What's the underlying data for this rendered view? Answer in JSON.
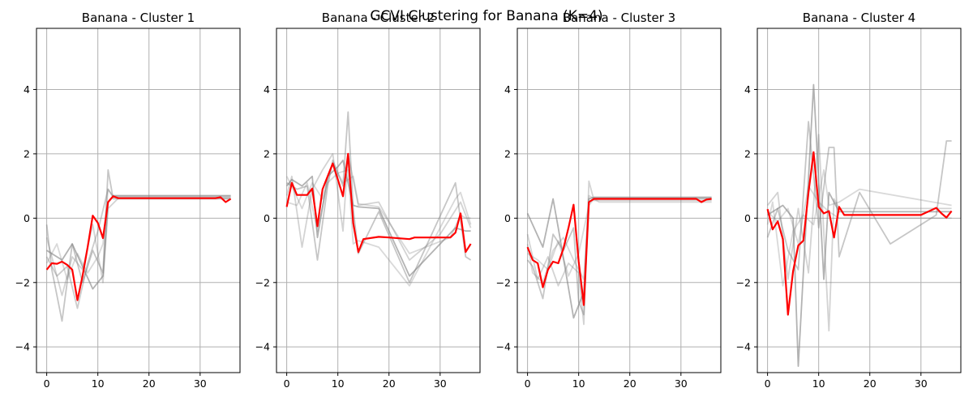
{
  "figure_title": "GCVI Clustering for Banana (K=4)",
  "colors": {
    "member": "#808080",
    "centroid": "#ff0000",
    "grid": "#b0b0b0"
  },
  "chart_data": [
    {
      "type": "line",
      "title": "Banana - Cluster 1",
      "xlim": [
        -2,
        37.8
      ],
      "ylim": [
        -4.8,
        5.9
      ],
      "xticks": [
        0,
        10,
        20,
        30
      ],
      "yticks": [
        -4,
        -2,
        0,
        2,
        4
      ],
      "grid": true,
      "members": [
        {
          "x": [
            0,
            3,
            5,
            9,
            11,
            12,
            13,
            36
          ],
          "y": [
            -1.0,
            -1.3,
            -0.8,
            -2.2,
            -1.8,
            0.5,
            0.7,
            0.7
          ],
          "opacity": 0.6
        },
        {
          "x": [
            0,
            1,
            3,
            5,
            7,
            9,
            11,
            12,
            13,
            36
          ],
          "y": [
            -0.2,
            -1.6,
            -3.2,
            -0.8,
            -2.0,
            -1.0,
            -1.7,
            1.5,
            0.6,
            0.6
          ],
          "opacity": 0.45
        },
        {
          "x": [
            0,
            2,
            4,
            6,
            8,
            10,
            12,
            13,
            36
          ],
          "y": [
            -1.2,
            -1.8,
            -1.5,
            -2.8,
            -1.4,
            -0.4,
            0.9,
            0.65,
            0.65
          ],
          "opacity": 0.4
        },
        {
          "x": [
            0,
            3,
            5,
            7,
            9,
            11,
            12,
            14,
            36
          ],
          "y": [
            -0.6,
            -2.4,
            -1.2,
            -1.6,
            -0.2,
            -2.0,
            0.3,
            0.62,
            0.62
          ],
          "opacity": 0.35
        },
        {
          "x": [
            0,
            2,
            4,
            6,
            8,
            10,
            11,
            12,
            13,
            36
          ],
          "y": [
            -1.4,
            -0.8,
            -1.9,
            -1.1,
            -1.7,
            -1.2,
            -0.8,
            0.9,
            0.68,
            0.68
          ],
          "opacity": 0.3
        }
      ],
      "centroid": {
        "x": [
          0,
          1,
          2,
          3,
          4,
          5,
          6,
          7,
          8,
          9,
          10,
          11,
          12,
          13,
          14,
          15,
          20,
          25,
          30,
          33,
          34,
          35,
          36
        ],
        "y": [
          -1.6,
          -1.4,
          -1.42,
          -1.35,
          -1.45,
          -1.6,
          -2.55,
          -1.8,
          -0.9,
          0.08,
          -0.15,
          -0.62,
          0.5,
          0.68,
          0.62,
          0.62,
          0.62,
          0.62,
          0.62,
          0.62,
          0.65,
          0.5,
          0.6
        ]
      }
    },
    {
      "type": "line",
      "title": "Banana - Cluster 2",
      "xlim": [
        -2,
        37.8
      ],
      "ylim": [
        -4.8,
        5.9
      ],
      "xticks": [
        0,
        10,
        20,
        30
      ],
      "yticks": [
        -4,
        -2,
        0,
        2,
        4
      ],
      "grid": true,
      "members": [
        {
          "x": [
            0,
            1,
            3,
            5,
            6,
            8,
            10,
            11,
            13,
            14,
            18,
            24,
            33,
            35,
            36
          ],
          "y": [
            1.0,
            1.2,
            1.0,
            1.3,
            -0.6,
            1.3,
            1.6,
            1.8,
            0.4,
            0.35,
            0.3,
            -1.8,
            -0.3,
            -0.4,
            -0.4
          ],
          "opacity": 0.6
        },
        {
          "x": [
            0,
            2,
            4,
            6,
            8,
            9,
            11,
            12,
            13,
            14,
            18,
            24,
            33,
            35,
            36
          ],
          "y": [
            1.1,
            0.9,
            1.0,
            -1.3,
            1.0,
            1.8,
            1.0,
            3.3,
            0.3,
            -1.1,
            0.2,
            -2.0,
            1.1,
            -1.2,
            -1.3
          ],
          "opacity": 0.45
        },
        {
          "x": [
            0,
            1,
            3,
            5,
            7,
            9,
            11,
            12,
            14,
            18,
            24,
            30,
            34,
            36
          ],
          "y": [
            0.7,
            1.3,
            -0.9,
            0.9,
            1.5,
            2.0,
            -0.4,
            2.0,
            0.4,
            0.5,
            -1.3,
            -0.5,
            0.5,
            -0.3
          ],
          "opacity": 0.35
        },
        {
          "x": [
            0,
            2,
            4,
            6,
            8,
            10,
            12,
            13,
            14,
            18,
            24,
            33,
            34,
            36
          ],
          "y": [
            0.5,
            0.4,
            1.1,
            -0.4,
            1.1,
            1.4,
            1.5,
            -0.8,
            -0.7,
            -0.9,
            -2.1,
            0.6,
            0.8,
            -0.2
          ],
          "opacity": 0.3
        },
        {
          "x": [
            0,
            1,
            3,
            5,
            7,
            9,
            11,
            13,
            14,
            18,
            24,
            32,
            34,
            35,
            36
          ],
          "y": [
            1.3,
            1.0,
            0.3,
            1.1,
            0.6,
            1.7,
            1.1,
            1.3,
            0.45,
            0.35,
            -1.1,
            -0.6,
            0.1,
            0.0,
            0.0
          ],
          "opacity": 0.3
        }
      ],
      "centroid": {
        "x": [
          0,
          1,
          2,
          3,
          4,
          5,
          6,
          7,
          8,
          9,
          10,
          11,
          12,
          13,
          14,
          15,
          18,
          20,
          24,
          25,
          30,
          32,
          33,
          34,
          35,
          36
        ],
        "y": [
          0.35,
          1.1,
          0.72,
          0.72,
          0.72,
          0.92,
          -0.25,
          0.9,
          1.3,
          1.7,
          1.2,
          0.68,
          2.0,
          -0.15,
          -1.05,
          -0.65,
          -0.58,
          -0.6,
          -0.65,
          -0.6,
          -0.6,
          -0.6,
          -0.45,
          0.15,
          -1.05,
          -0.8
        ]
      }
    },
    {
      "type": "line",
      "title": "Banana - Cluster 3",
      "xlim": [
        -2,
        37.8
      ],
      "ylim": [
        -4.8,
        5.9
      ],
      "xticks": [
        0,
        10,
        20,
        30
      ],
      "yticks": [
        -4,
        -2,
        0,
        2,
        4
      ],
      "grid": true,
      "members": [
        {
          "x": [
            0,
            3,
            5,
            6,
            9,
            11,
            12,
            13,
            36
          ],
          "y": [
            0.15,
            -0.9,
            0.6,
            -0.3,
            -3.1,
            -2.3,
            0.6,
            0.65,
            0.65
          ],
          "opacity": 0.6
        },
        {
          "x": [
            0,
            1,
            3,
            5,
            7,
            9,
            10,
            11,
            12,
            13,
            36
          ],
          "y": [
            -1.3,
            -1.5,
            -2.5,
            -0.5,
            -1.0,
            -0.3,
            -2.6,
            -3.0,
            0.5,
            0.62,
            0.62
          ],
          "opacity": 0.45
        },
        {
          "x": [
            0,
            2,
            4,
            6,
            8,
            10,
            11,
            12,
            13,
            36
          ],
          "y": [
            -0.5,
            -1.9,
            -1.2,
            -2.1,
            -1.4,
            -1.7,
            -3.3,
            1.15,
            0.55,
            0.55
          ],
          "opacity": 0.35
        },
        {
          "x": [
            0,
            1,
            3,
            5,
            7,
            9,
            11,
            12,
            14,
            36
          ],
          "y": [
            -0.8,
            -1.7,
            -2.0,
            -1.0,
            -0.6,
            -1.3,
            -1.9,
            0.7,
            0.5,
            0.5
          ],
          "opacity": 0.3
        },
        {
          "x": [
            0,
            2,
            4,
            6,
            8,
            10,
            12,
            13,
            36
          ],
          "y": [
            -1.1,
            -1.3,
            -1.6,
            -0.7,
            -1.8,
            -1.1,
            0.4,
            0.6,
            0.6
          ],
          "opacity": 0.3
        }
      ],
      "centroid": {
        "x": [
          0,
          1,
          2,
          3,
          4,
          5,
          6,
          7,
          8,
          9,
          10,
          11,
          12,
          13,
          14,
          15,
          20,
          25,
          30,
          33,
          34,
          35,
          36
        ],
        "y": [
          -0.9,
          -1.3,
          -1.4,
          -2.15,
          -1.6,
          -1.35,
          -1.4,
          -0.95,
          -0.3,
          0.42,
          -1.35,
          -2.7,
          0.5,
          0.6,
          0.6,
          0.6,
          0.6,
          0.6,
          0.6,
          0.6,
          0.5,
          0.58,
          0.6
        ]
      }
    },
    {
      "type": "line",
      "title": "Banana - Cluster 4",
      "xlim": [
        -2,
        37.8
      ],
      "ylim": [
        -4.8,
        5.9
      ],
      "xticks": [
        0,
        10,
        20,
        30
      ],
      "yticks": [
        -4,
        -2,
        0,
        2,
        4
      ],
      "grid": true,
      "members": [
        {
          "x": [
            0,
            3,
            5,
            6,
            9,
            11,
            12,
            14,
            36
          ],
          "y": [
            0.1,
            0.4,
            0.0,
            -4.6,
            4.15,
            -1.9,
            0.8,
            0.2,
            0.2
          ],
          "opacity": 0.6
        },
        {
          "x": [
            0,
            2,
            4,
            6,
            8,
            10,
            12,
            13,
            14,
            18,
            24,
            33,
            35,
            36
          ],
          "y": [
            -0.6,
            0.3,
            -1.0,
            -1.6,
            3.0,
            -0.3,
            2.2,
            2.2,
            -1.2,
            0.8,
            -0.8,
            0.1,
            2.4,
            2.4
          ],
          "opacity": 0.45
        },
        {
          "x": [
            0,
            2,
            4,
            6,
            8,
            10,
            12,
            13,
            14,
            18,
            36
          ],
          "y": [
            0.4,
            0.8,
            -1.9,
            0.3,
            -1.7,
            2.6,
            -3.5,
            0.6,
            0.3,
            0.3,
            0.3
          ],
          "opacity": 0.35
        },
        {
          "x": [
            0,
            1,
            3,
            5,
            7,
            9,
            11,
            12,
            14,
            18,
            36
          ],
          "y": [
            -0.2,
            0.5,
            -2.1,
            -0.4,
            0.1,
            -0.2,
            1.5,
            0.4,
            0.5,
            0.9,
            0.4
          ],
          "opacity": 0.3
        },
        {
          "x": [
            0,
            2,
            4,
            6,
            8,
            10,
            12,
            14,
            36
          ],
          "y": [
            0.2,
            -0.1,
            0.3,
            -0.8,
            1.0,
            0.5,
            0.2,
            0.0,
            0.0
          ],
          "opacity": 0.3
        }
      ],
      "centroid": {
        "x": [
          0,
          1,
          2,
          3,
          4,
          5,
          6,
          7,
          8,
          9,
          10,
          11,
          12,
          13,
          14,
          15,
          20,
          25,
          30,
          33,
          34,
          35,
          36
        ],
        "y": [
          0.28,
          -0.35,
          -0.1,
          -0.65,
          -3.0,
          -1.65,
          -0.85,
          -0.7,
          0.8,
          2.05,
          0.35,
          0.15,
          0.22,
          -0.6,
          0.35,
          0.1,
          0.1,
          0.1,
          0.1,
          0.32,
          0.15,
          0.02,
          0.22
        ]
      }
    }
  ]
}
